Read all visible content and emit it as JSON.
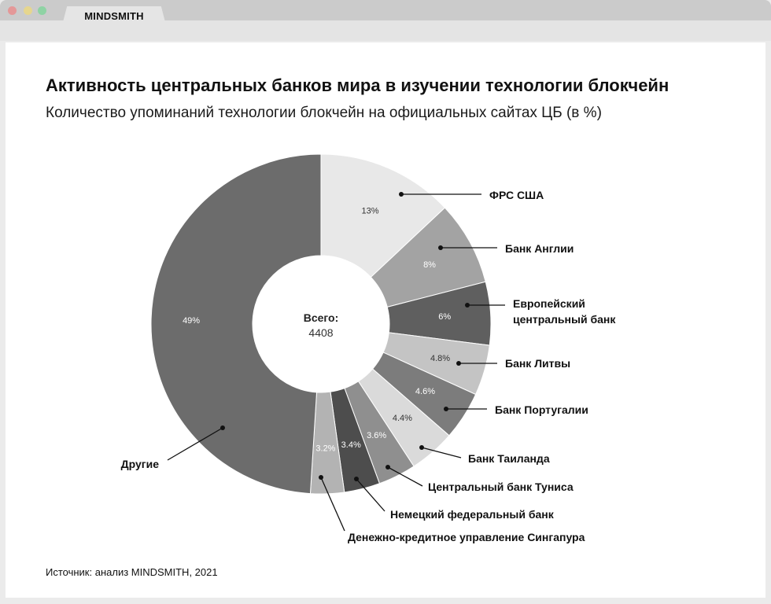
{
  "browser": {
    "tab_title": "MINDSMITH"
  },
  "header": {
    "title": "Активность центральных банков мира в изучении технологии блокчейн",
    "subtitle": "Количество упоминаний технологии блокчейн на официальных сайтах ЦБ (в %)"
  },
  "center": {
    "label": "Всего:",
    "value": "4408"
  },
  "footer": {
    "source": "Источник: анализ MINDSMITH, 2021"
  },
  "chart_data": {
    "type": "pie",
    "variant": "donut",
    "title": "Активность центральных банков мира в изучении технологии блокчейн",
    "subtitle": "Количество упоминаний технологии блокчейн на официальных сайтах ЦБ (в %)",
    "total": 4408,
    "start_angle": "12 o'clock, clockwise",
    "categories": [
      "ФРС США",
      "Банк Англии",
      "Европейский центральный банк",
      "Банк Литвы",
      "Банк Португалии",
      "Банк Таиланда",
      "Центральный банк Туниса",
      "Немецкий федеральный банк",
      "Денежно-кредитное управление Сингапура",
      "Другие"
    ],
    "values": [
      13,
      8,
      6,
      4.8,
      4.6,
      4.4,
      3.6,
      3.4,
      3.2,
      49
    ],
    "value_labels": [
      "13%",
      "8%",
      "6%",
      "4.8%",
      "4.6%",
      "4.4%",
      "3.6%",
      "3.4%",
      "3.2%",
      "49%"
    ],
    "colors": [
      "#e8e8e8",
      "#a3a3a3",
      "#5f5f5f",
      "#c4c4c4",
      "#7c7c7c",
      "#dadada",
      "#8f8f8f",
      "#4d4d4d",
      "#b3b3b3",
      "#6c6c6c"
    ],
    "label_text_colors": [
      "#333333",
      "#ffffff",
      "#ffffff",
      "#333333",
      "#ffffff",
      "#333333",
      "#ffffff",
      "#ffffff",
      "#ffffff",
      "#ffffff"
    ],
    "legend_position": "leader-line callouts"
  }
}
